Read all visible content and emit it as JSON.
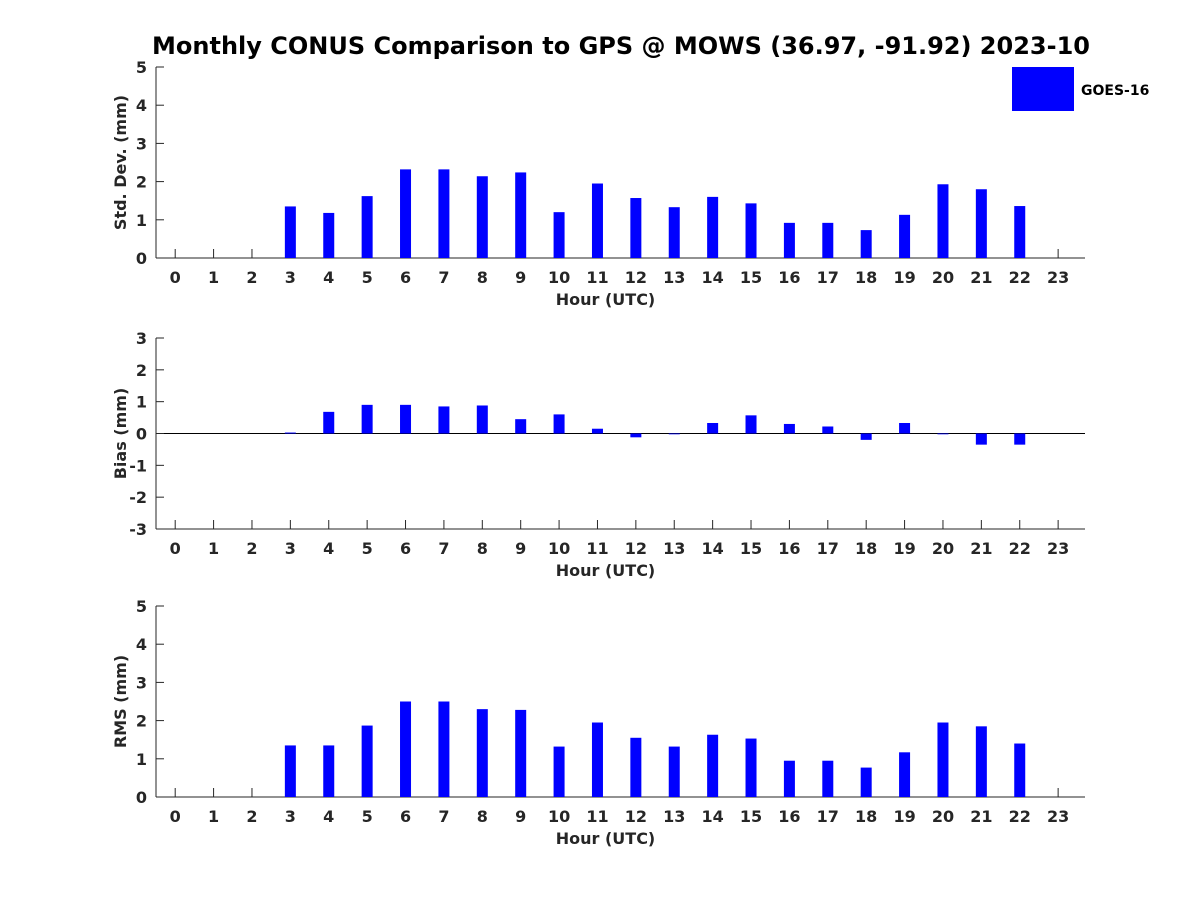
{
  "title": "Monthly CONUS Comparison to GPS @ MOWS (36.97, -91.92) 2023-10",
  "legend": {
    "label": "GOES-16",
    "color": "#0000ff",
    "placement": "top-right"
  },
  "chart_data": [
    {
      "type": "bar",
      "xlabel": "Hour (UTC)",
      "ylabel": "Std. Dev. (mm)",
      "ylim": [
        0,
        5
      ],
      "yticks": [
        "0",
        "1",
        "2",
        "3",
        "4",
        "5"
      ],
      "x": [
        "0",
        "1",
        "2",
        "3",
        "4",
        "5",
        "6",
        "7",
        "8",
        "9",
        "10",
        "11",
        "12",
        "13",
        "14",
        "15",
        "16",
        "17",
        "18",
        "19",
        "20",
        "21",
        "22",
        "23"
      ],
      "series": [
        {
          "name": "GOES-16",
          "values": [
            null,
            null,
            null,
            1.35,
            1.18,
            1.62,
            2.32,
            2.32,
            2.14,
            2.24,
            1.2,
            1.95,
            1.57,
            1.33,
            1.6,
            1.43,
            0.92,
            0.92,
            0.73,
            1.13,
            1.93,
            1.8,
            1.36,
            null
          ]
        }
      ],
      "grid": false
    },
    {
      "type": "bar",
      "xlabel": "Hour (UTC)",
      "ylabel": "Bias (mm)",
      "ylim": [
        -3,
        3
      ],
      "yticks": [
        "-3",
        "-2",
        "-1",
        "0",
        "1",
        "2",
        "3"
      ],
      "x": [
        "0",
        "1",
        "2",
        "3",
        "4",
        "5",
        "6",
        "7",
        "8",
        "9",
        "10",
        "11",
        "12",
        "13",
        "14",
        "15",
        "16",
        "17",
        "18",
        "19",
        "20",
        "21",
        "22",
        "23"
      ],
      "series": [
        {
          "name": "GOES-16",
          "values": [
            null,
            null,
            null,
            0.03,
            0.68,
            0.9,
            0.9,
            0.85,
            0.88,
            0.45,
            0.6,
            0.15,
            -0.12,
            0.0,
            0.33,
            0.57,
            0.3,
            0.22,
            -0.2,
            0.33,
            0.0,
            -0.35,
            -0.35,
            null
          ]
        }
      ],
      "grid": false
    },
    {
      "type": "bar",
      "xlabel": "Hour (UTC)",
      "ylabel": "RMS (mm)",
      "ylim": [
        0,
        5
      ],
      "yticks": [
        "0",
        "1",
        "2",
        "3",
        "4",
        "5"
      ],
      "x": [
        "0",
        "1",
        "2",
        "3",
        "4",
        "5",
        "6",
        "7",
        "8",
        "9",
        "10",
        "11",
        "12",
        "13",
        "14",
        "15",
        "16",
        "17",
        "18",
        "19",
        "20",
        "21",
        "22",
        "23"
      ],
      "series": [
        {
          "name": "GOES-16",
          "values": [
            null,
            null,
            null,
            1.35,
            1.35,
            1.87,
            2.5,
            2.5,
            2.3,
            2.28,
            1.32,
            1.95,
            1.55,
            1.32,
            1.63,
            1.53,
            0.95,
            0.95,
            0.77,
            1.17,
            1.95,
            1.85,
            1.4,
            null
          ]
        }
      ],
      "grid": false
    }
  ]
}
